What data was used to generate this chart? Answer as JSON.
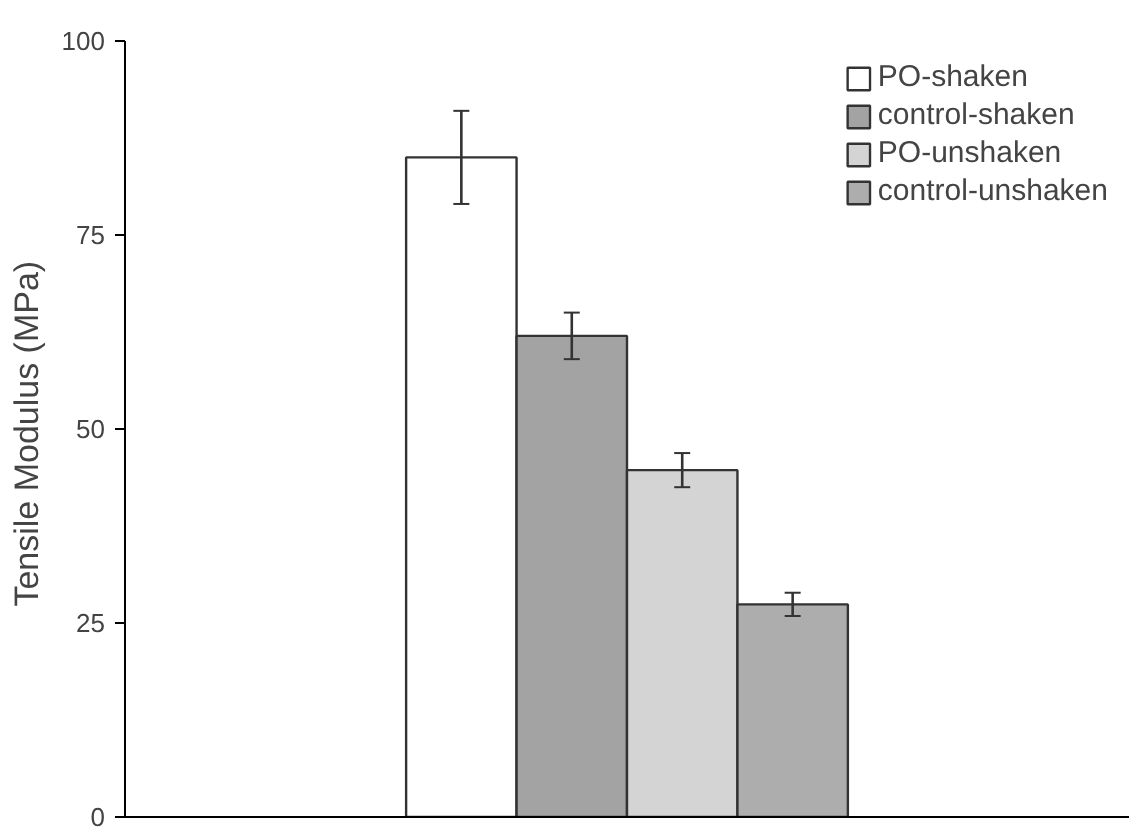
{
  "chart_data": {
    "type": "bar",
    "ylabel": "Tensile Modulus  (MPa)",
    "categories": [
      null
    ],
    "series": [
      {
        "name": "PO-shaken",
        "color": "#ffffff",
        "values": [
          85
        ],
        "errors": [
          6
        ]
      },
      {
        "name": "control-shaken",
        "color": "#a3a3a3",
        "values": [
          62
        ],
        "errors": [
          3
        ]
      },
      {
        "name": "PO-unshaken",
        "color": "#d4d4d4",
        "values": [
          44.7
        ],
        "errors": [
          2.2
        ]
      },
      {
        "name": "control-unshaken",
        "color": "#adadad",
        "values": [
          27.4
        ],
        "errors": [
          1.5
        ]
      }
    ],
    "ylim": [
      0,
      100
    ],
    "yticks": [
      0,
      25,
      50,
      75,
      100
    ],
    "grid": false,
    "legend": "top right",
    "tick_labels": "y"
  }
}
